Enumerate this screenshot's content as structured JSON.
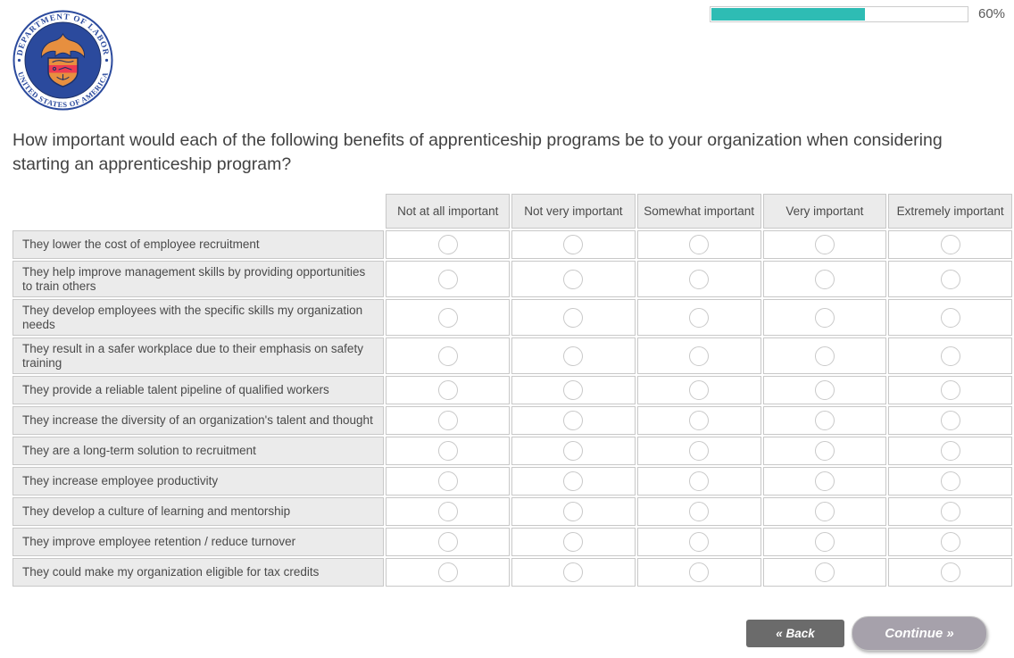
{
  "progress": {
    "percent": 60,
    "label": "60%"
  },
  "logo": {
    "name": "United States Department of Labor seal",
    "ring_text_top": "DEPARTMENT OF LABOR",
    "ring_text_bottom": "UNITED STATES OF AMERICA"
  },
  "question": {
    "text": "How important would each of the following benefits of apprenticeship programs be to your organization when considering starting an apprenticeship program?"
  },
  "matrix": {
    "columns": [
      "Not at all important",
      "Not very important",
      "Somewhat important",
      "Very important",
      "Extremely important"
    ],
    "rows": [
      "They lower the cost of employee recruitment",
      "They help improve management skills by providing opportunities to train others",
      "They develop employees with the specific skills my organization needs",
      "They result in a safer workplace due to their emphasis on safety training",
      "They provide a reliable talent pipeline of qualified workers",
      "They increase the diversity of an organization's talent and thought",
      "They are a long-term solution to recruitment",
      "They increase employee productivity",
      "They develop a culture of learning and mentorship",
      "They improve employee retention / reduce turnover",
      "They could make my organization eligible for tax credits"
    ]
  },
  "buttons": {
    "back": "« Back",
    "continue": "Continue »"
  },
  "colors": {
    "accent_teal": "#2ebcb4",
    "back_btn_bg": "#6b6b6b",
    "continue_btn_bg": "#a6a1ab",
    "cell_border": "#c8c8c8",
    "label_bg": "#ebebeb",
    "seal_navy": "#2b4a9d",
    "seal_gold": "#e78f3f",
    "seal_red": "#ee3a52"
  }
}
